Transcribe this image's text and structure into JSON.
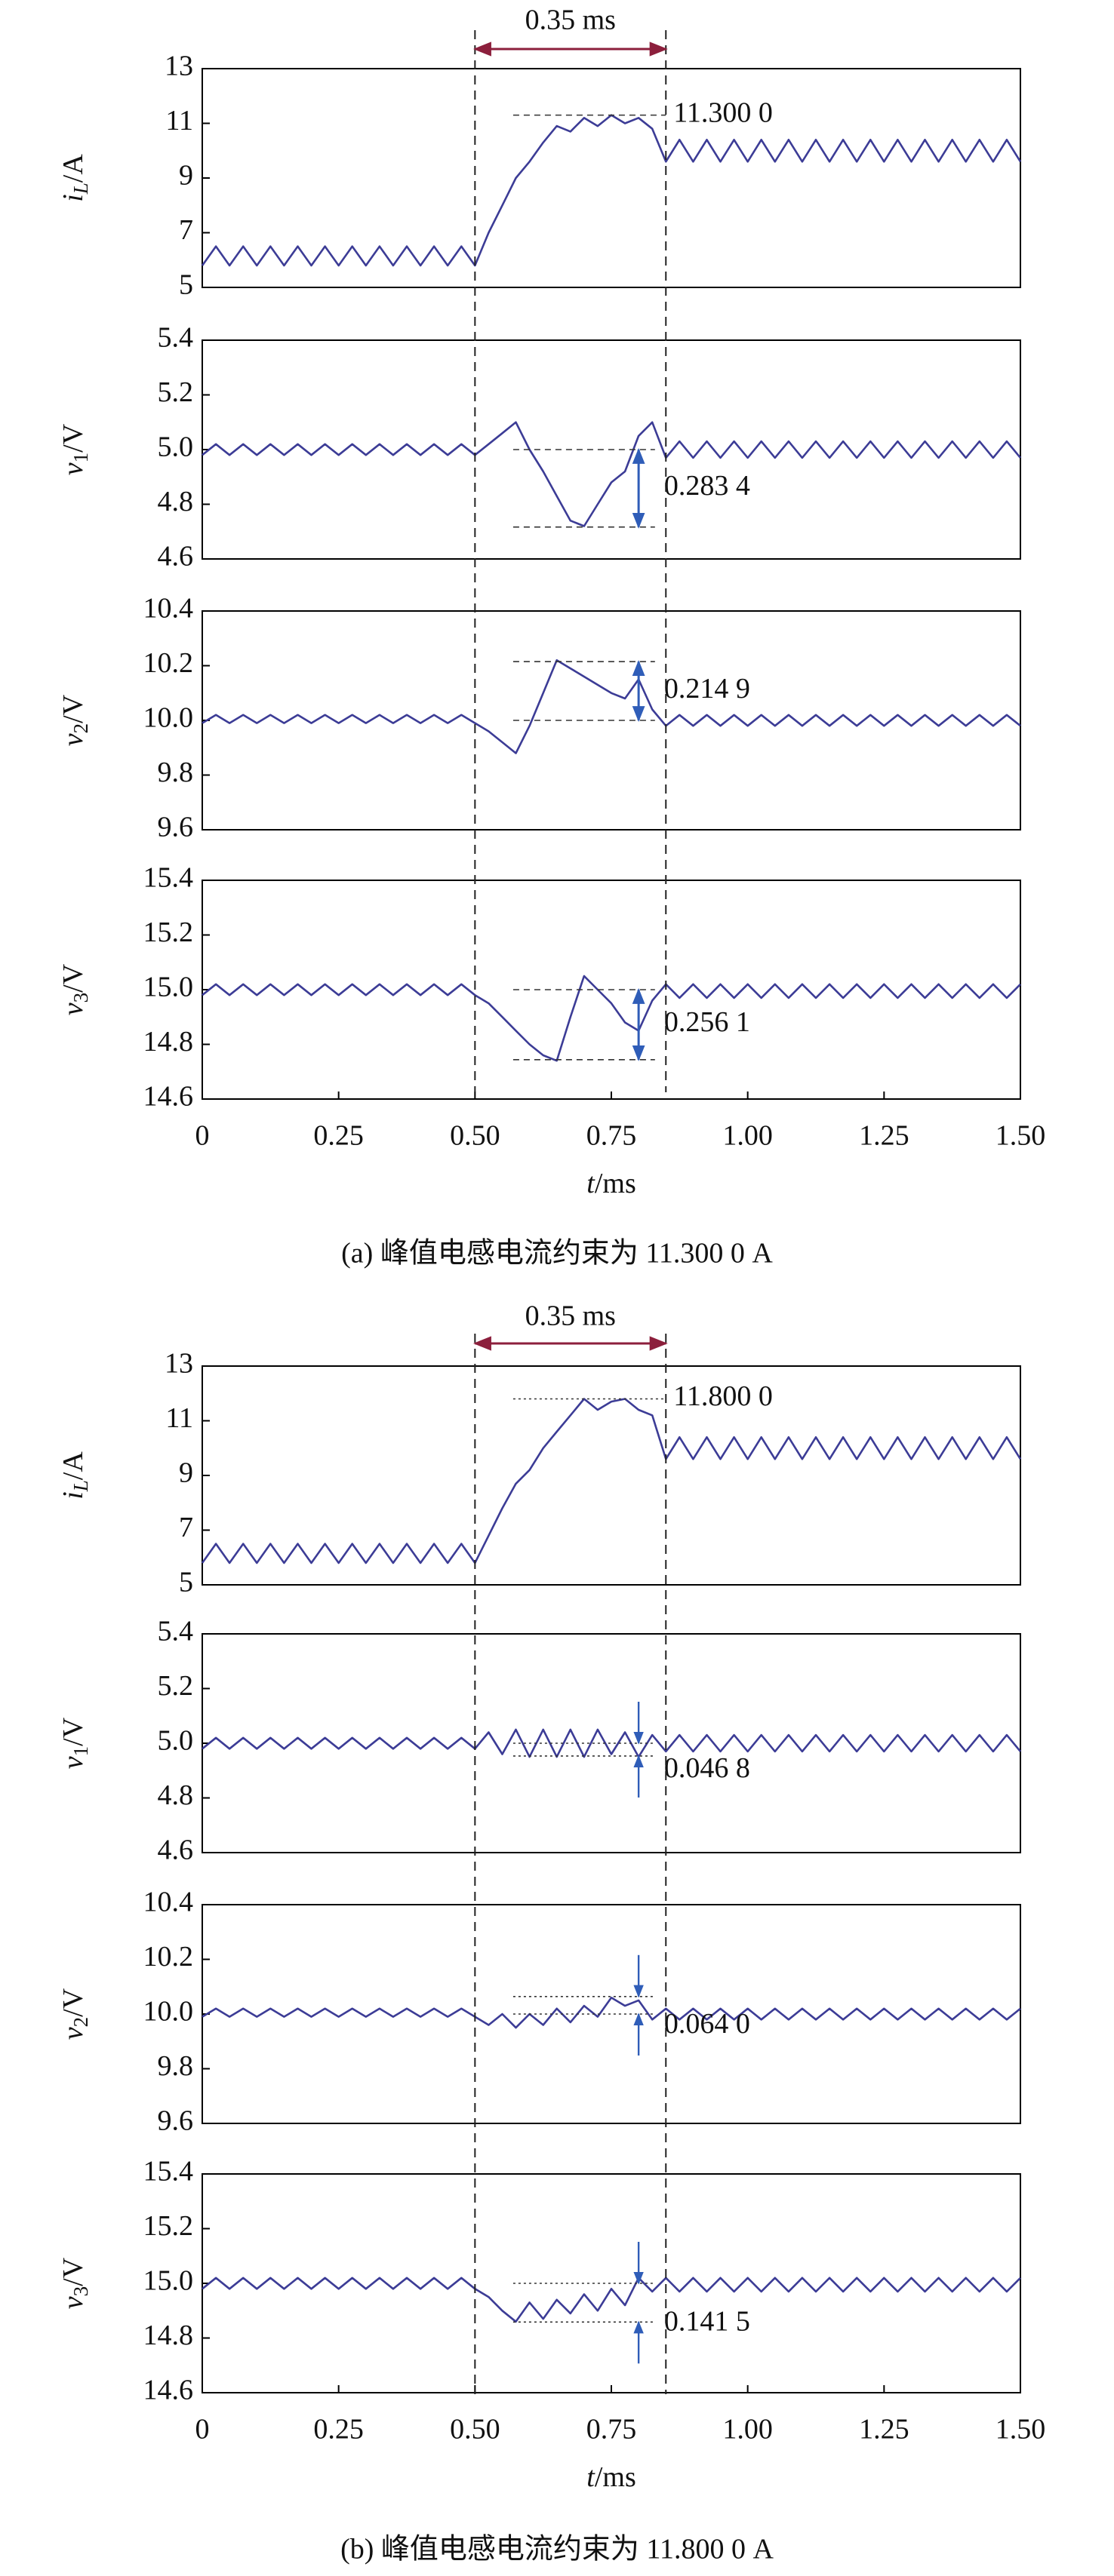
{
  "figures": [
    {
      "caption": "(a) 峰值电感电流约束为 11.300 0 A",
      "span_label": "0.35 ms",
      "span": [
        0.5,
        0.85
      ]
    },
    {
      "caption": "(b) 峰值电感电流约束为 11.800 0 A",
      "span_label": "0.35 ms",
      "span": [
        0.5,
        0.85
      ]
    }
  ],
  "chart_data": [
    {
      "type": "line",
      "ylabel": [
        "i",
        "L",
        "/A"
      ],
      "color": "#3c3c96",
      "xlim": [
        0,
        1.5
      ],
      "ylim": [
        5,
        13
      ],
      "yticks": [
        5,
        7,
        9,
        11,
        13
      ],
      "x": [
        0,
        0.025,
        0.05,
        0.075,
        0.1,
        0.125,
        0.15,
        0.175,
        0.2,
        0.225,
        0.25,
        0.275,
        0.3,
        0.325,
        0.35,
        0.375,
        0.4,
        0.425,
        0.45,
        0.475,
        0.5,
        0.525,
        0.55,
        0.575,
        0.6,
        0.625,
        0.65,
        0.675,
        0.7,
        0.725,
        0.75,
        0.775,
        0.8,
        0.825,
        0.85,
        0.875,
        0.9,
        0.925,
        0.95,
        0.975,
        1,
        1.025,
        1.05,
        1.075,
        1.1,
        1.125,
        1.15,
        1.175,
        1.2,
        1.225,
        1.25,
        1.275,
        1.3,
        1.325,
        1.35,
        1.375,
        1.4,
        1.425,
        1.45,
        1.475,
        1.5
      ],
      "values": [
        5.8,
        6.5,
        5.8,
        6.5,
        5.8,
        6.5,
        5.8,
        6.5,
        5.8,
        6.5,
        5.8,
        6.5,
        5.8,
        6.5,
        5.8,
        6.5,
        5.8,
        6.5,
        5.8,
        6.5,
        5.8,
        7.0,
        8.0,
        9.0,
        9.6,
        10.3,
        10.9,
        10.7,
        11.2,
        10.9,
        11.3,
        11.0,
        11.2,
        10.8,
        9.6,
        10.4,
        9.6,
        10.4,
        9.6,
        10.4,
        9.6,
        10.4,
        9.6,
        10.4,
        9.6,
        10.4,
        9.6,
        10.4,
        9.6,
        10.4,
        9.6,
        10.4,
        9.6,
        10.4,
        9.6,
        10.4,
        9.6,
        10.4,
        9.6,
        10.4,
        9.6
      ],
      "annotation": {
        "text": "11.300 0",
        "value": 11.3
      }
    },
    {
      "type": "line",
      "ylabel": [
        "v",
        "1",
        "/V"
      ],
      "color": "#3c3c96",
      "xlim": [
        0,
        1.5
      ],
      "ylim": [
        4.6,
        5.4
      ],
      "yticks": [
        4.6,
        4.8,
        {
          "value": 5.0,
          "label": "5.0"
        },
        5.2,
        5.4
      ],
      "x": [
        0,
        0.025,
        0.05,
        0.075,
        0.1,
        0.125,
        0.15,
        0.175,
        0.2,
        0.225,
        0.25,
        0.275,
        0.3,
        0.325,
        0.35,
        0.375,
        0.4,
        0.425,
        0.45,
        0.475,
        0.5,
        0.525,
        0.55,
        0.575,
        0.6,
        0.625,
        0.65,
        0.675,
        0.7,
        0.725,
        0.75,
        0.775,
        0.8,
        0.825,
        0.85,
        0.875,
        0.9,
        0.925,
        0.95,
        0.975,
        1,
        1.025,
        1.05,
        1.075,
        1.1,
        1.125,
        1.15,
        1.175,
        1.2,
        1.225,
        1.25,
        1.275,
        1.3,
        1.325,
        1.35,
        1.375,
        1.4,
        1.425,
        1.45,
        1.475,
        1.5
      ],
      "values": [
        4.98,
        5.02,
        4.98,
        5.02,
        4.98,
        5.02,
        4.98,
        5.02,
        4.98,
        5.02,
        4.98,
        5.02,
        4.98,
        5.02,
        4.98,
        5.02,
        4.98,
        5.02,
        4.98,
        5.02,
        4.98,
        5.02,
        5.06,
        5.1,
        5.0,
        4.92,
        4.83,
        4.74,
        4.72,
        4.8,
        4.88,
        4.92,
        5.05,
        5.1,
        4.97,
        5.03,
        4.97,
        5.03,
        4.97,
        5.03,
        4.97,
        5.03,
        4.97,
        5.03,
        4.97,
        5.03,
        4.97,
        5.03,
        4.97,
        5.03,
        4.97,
        5.03,
        4.97,
        5.03,
        4.97,
        5.03,
        4.97,
        5.03,
        4.97,
        5.03,
        4.97
      ],
      "annotation": {
        "text": "0.283 4",
        "from": 5.0,
        "to": 4.7166
      }
    },
    {
      "type": "line",
      "ylabel": [
        "v",
        "2",
        "/V"
      ],
      "color": "#3c3c96",
      "xlim": [
        0,
        1.5
      ],
      "ylim": [
        9.6,
        10.4
      ],
      "yticks": [
        9.6,
        9.8,
        {
          "value": 10.0,
          "label": "10.0"
        },
        10.2,
        10.4
      ],
      "x": [
        0,
        0.025,
        0.05,
        0.075,
        0.1,
        0.125,
        0.15,
        0.175,
        0.2,
        0.225,
        0.25,
        0.275,
        0.3,
        0.325,
        0.35,
        0.375,
        0.4,
        0.425,
        0.45,
        0.475,
        0.5,
        0.525,
        0.55,
        0.575,
        0.6,
        0.625,
        0.65,
        0.675,
        0.7,
        0.725,
        0.75,
        0.775,
        0.8,
        0.825,
        0.85,
        0.875,
        0.9,
        0.925,
        0.95,
        0.975,
        1,
        1.025,
        1.05,
        1.075,
        1.1,
        1.125,
        1.15,
        1.175,
        1.2,
        1.225,
        1.25,
        1.275,
        1.3,
        1.325,
        1.35,
        1.375,
        1.4,
        1.425,
        1.45,
        1.475,
        1.5
      ],
      "values": [
        9.99,
        10.02,
        9.99,
        10.02,
        9.99,
        10.02,
        9.99,
        10.02,
        9.99,
        10.02,
        9.99,
        10.02,
        9.99,
        10.02,
        9.99,
        10.02,
        9.99,
        10.02,
        9.99,
        10.02,
        9.99,
        9.96,
        9.92,
        9.88,
        9.98,
        10.1,
        10.22,
        10.19,
        10.16,
        10.13,
        10.1,
        10.08,
        10.15,
        10.04,
        9.98,
        10.02,
        9.98,
        10.02,
        9.98,
        10.02,
        9.98,
        10.02,
        9.98,
        10.02,
        9.98,
        10.02,
        9.98,
        10.02,
        9.98,
        10.02,
        9.98,
        10.02,
        9.98,
        10.02,
        9.98,
        10.02,
        9.98,
        10.02,
        9.98,
        10.02,
        9.98
      ],
      "annotation": {
        "text": "0.214 9",
        "from": 10.0,
        "to": 10.2149
      }
    },
    {
      "type": "line",
      "ylabel": [
        "v",
        "3",
        "/V"
      ],
      "color": "#3c3c96",
      "xlim": [
        0,
        1.5
      ],
      "ylim": [
        14.6,
        15.4
      ],
      "yticks": [
        14.6,
        14.8,
        {
          "value": 15.0,
          "label": "15.0"
        },
        15.2,
        15.4
      ],
      "xticks": [
        0,
        0.25,
        {
          "value": 0.5,
          "label": "0.50"
        },
        0.75,
        {
          "value": 1,
          "label": "1.00"
        },
        1.25,
        {
          "value": 1.5,
          "label": "1.50"
        }
      ],
      "xlabel": [
        "t",
        "/ms"
      ],
      "x": [
        0,
        0.025,
        0.05,
        0.075,
        0.1,
        0.125,
        0.15,
        0.175,
        0.2,
        0.225,
        0.25,
        0.275,
        0.3,
        0.325,
        0.35,
        0.375,
        0.4,
        0.425,
        0.45,
        0.475,
        0.5,
        0.525,
        0.55,
        0.575,
        0.6,
        0.625,
        0.65,
        0.675,
        0.7,
        0.725,
        0.75,
        0.775,
        0.8,
        0.825,
        0.85,
        0.875,
        0.9,
        0.925,
        0.95,
        0.975,
        1,
        1.025,
        1.05,
        1.075,
        1.1,
        1.125,
        1.15,
        1.175,
        1.2,
        1.225,
        1.25,
        1.275,
        1.3,
        1.325,
        1.35,
        1.375,
        1.4,
        1.425,
        1.45,
        1.475,
        1.5
      ],
      "values": [
        14.98,
        15.02,
        14.98,
        15.02,
        14.98,
        15.02,
        14.98,
        15.02,
        14.98,
        15.02,
        14.98,
        15.02,
        14.98,
        15.02,
        14.98,
        15.02,
        14.98,
        15.02,
        14.98,
        15.02,
        14.98,
        14.95,
        14.9,
        14.85,
        14.8,
        14.76,
        14.74,
        14.9,
        15.05,
        15.0,
        14.95,
        14.88,
        14.85,
        14.96,
        15.02,
        14.97,
        15.02,
        14.97,
        15.02,
        14.97,
        15.02,
        14.97,
        15.02,
        14.97,
        15.02,
        14.97,
        15.02,
        14.97,
        15.02,
        14.97,
        15.02,
        14.97,
        15.02,
        14.97,
        15.02,
        14.97,
        15.02,
        14.97,
        15.02,
        14.97,
        15.02
      ],
      "annotation": {
        "text": "0.256 1",
        "from": 15.0,
        "to": 14.7439
      }
    },
    {
      "type": "line",
      "ylabel": [
        "i",
        "L",
        "/A"
      ],
      "color": "#3c3c96",
      "xlim": [
        0,
        1.5
      ],
      "ylim": [
        5,
        13
      ],
      "yticks": [
        5,
        7,
        9,
        11,
        13
      ],
      "x": [
        0,
        0.025,
        0.05,
        0.075,
        0.1,
        0.125,
        0.15,
        0.175,
        0.2,
        0.225,
        0.25,
        0.275,
        0.3,
        0.325,
        0.35,
        0.375,
        0.4,
        0.425,
        0.45,
        0.475,
        0.5,
        0.525,
        0.55,
        0.575,
        0.6,
        0.625,
        0.65,
        0.675,
        0.7,
        0.725,
        0.75,
        0.775,
        0.8,
        0.825,
        0.85,
        0.875,
        0.9,
        0.925,
        0.95,
        0.975,
        1,
        1.025,
        1.05,
        1.075,
        1.1,
        1.125,
        1.15,
        1.175,
        1.2,
        1.225,
        1.25,
        1.275,
        1.3,
        1.325,
        1.35,
        1.375,
        1.4,
        1.425,
        1.45,
        1.475,
        1.5
      ],
      "values": [
        5.8,
        6.5,
        5.8,
        6.5,
        5.8,
        6.5,
        5.8,
        6.5,
        5.8,
        6.5,
        5.8,
        6.5,
        5.8,
        6.5,
        5.8,
        6.5,
        5.8,
        6.5,
        5.8,
        6.5,
        5.8,
        6.8,
        7.8,
        8.7,
        9.2,
        10.0,
        10.6,
        11.2,
        11.8,
        11.4,
        11.7,
        11.8,
        11.4,
        11.2,
        9.6,
        10.4,
        9.6,
        10.4,
        9.6,
        10.4,
        9.6,
        10.4,
        9.6,
        10.4,
        9.6,
        10.4,
        9.6,
        10.4,
        9.6,
        10.4,
        9.6,
        10.4,
        9.6,
        10.4,
        9.6,
        10.4,
        9.6,
        10.4,
        9.6,
        10.4,
        9.6
      ],
      "annotation": {
        "text": "11.800 0",
        "value": 11.8
      }
    },
    {
      "type": "line",
      "ylabel": [
        "v",
        "1",
        "/V"
      ],
      "color": "#3c3c96",
      "xlim": [
        0,
        1.5
      ],
      "ylim": [
        4.6,
        5.4
      ],
      "yticks": [
        4.6,
        4.8,
        {
          "value": 5.0,
          "label": "5.0"
        },
        5.2,
        5.4
      ],
      "x": [
        0,
        0.025,
        0.05,
        0.075,
        0.1,
        0.125,
        0.15,
        0.175,
        0.2,
        0.225,
        0.25,
        0.275,
        0.3,
        0.325,
        0.35,
        0.375,
        0.4,
        0.425,
        0.45,
        0.475,
        0.5,
        0.525,
        0.55,
        0.575,
        0.6,
        0.625,
        0.65,
        0.675,
        0.7,
        0.725,
        0.75,
        0.775,
        0.8,
        0.825,
        0.85,
        0.875,
        0.9,
        0.925,
        0.95,
        0.975,
        1,
        1.025,
        1.05,
        1.075,
        1.1,
        1.125,
        1.15,
        1.175,
        1.2,
        1.225,
        1.25,
        1.275,
        1.3,
        1.325,
        1.35,
        1.375,
        1.4,
        1.425,
        1.45,
        1.475,
        1.5
      ],
      "values": [
        4.98,
        5.02,
        4.98,
        5.02,
        4.98,
        5.02,
        4.98,
        5.02,
        4.98,
        5.02,
        4.98,
        5.02,
        4.98,
        5.02,
        4.98,
        5.02,
        4.98,
        5.02,
        4.98,
        5.02,
        4.98,
        5.04,
        4.96,
        5.05,
        4.95,
        5.05,
        4.95,
        5.05,
        4.95,
        5.05,
        4.96,
        5.04,
        4.95,
        5.03,
        4.97,
        5.03,
        4.97,
        5.03,
        4.97,
        5.03,
        4.97,
        5.03,
        4.97,
        5.03,
        4.97,
        5.03,
        4.97,
        5.03,
        4.97,
        5.03,
        4.97,
        5.03,
        4.97,
        5.03,
        4.97,
        5.03,
        4.97,
        5.03,
        4.97,
        5.03,
        4.97
      ],
      "annotation": {
        "text": "0.046 8",
        "from": 5.0,
        "to": 4.9532
      }
    },
    {
      "type": "line",
      "ylabel": [
        "v",
        "2",
        "/V"
      ],
      "color": "#3c3c96",
      "xlim": [
        0,
        1.5
      ],
      "ylim": [
        9.6,
        10.4
      ],
      "yticks": [
        9.6,
        9.8,
        {
          "value": 10.0,
          "label": "10.0"
        },
        10.2,
        10.4
      ],
      "x": [
        0,
        0.025,
        0.05,
        0.075,
        0.1,
        0.125,
        0.15,
        0.175,
        0.2,
        0.225,
        0.25,
        0.275,
        0.3,
        0.325,
        0.35,
        0.375,
        0.4,
        0.425,
        0.45,
        0.475,
        0.5,
        0.525,
        0.55,
        0.575,
        0.6,
        0.625,
        0.65,
        0.675,
        0.7,
        0.725,
        0.75,
        0.775,
        0.8,
        0.825,
        0.85,
        0.875,
        0.9,
        0.925,
        0.95,
        0.975,
        1,
        1.025,
        1.05,
        1.075,
        1.1,
        1.125,
        1.15,
        1.175,
        1.2,
        1.225,
        1.25,
        1.275,
        1.3,
        1.325,
        1.35,
        1.375,
        1.4,
        1.425,
        1.45,
        1.475,
        1.5
      ],
      "values": [
        9.99,
        10.02,
        9.99,
        10.02,
        9.99,
        10.02,
        9.99,
        10.02,
        9.99,
        10.02,
        9.99,
        10.02,
        9.99,
        10.02,
        9.99,
        10.02,
        9.99,
        10.02,
        9.99,
        10.02,
        9.99,
        9.96,
        10.0,
        9.95,
        10.0,
        9.96,
        10.02,
        9.97,
        10.03,
        9.99,
        10.06,
        10.03,
        10.05,
        9.98,
        10.02,
        9.98,
        10.02,
        9.98,
        10.02,
        9.98,
        10.02,
        9.98,
        10.02,
        9.98,
        10.02,
        9.98,
        10.02,
        9.98,
        10.02,
        9.98,
        10.02,
        9.98,
        10.02,
        9.98,
        10.02,
        9.98,
        10.02,
        9.98,
        10.02,
        9.98,
        10.02
      ],
      "annotation": {
        "text": "0.064 0",
        "from": 10.0,
        "to": 10.064
      }
    },
    {
      "type": "line",
      "ylabel": [
        "v",
        "3",
        "/V"
      ],
      "color": "#3c3c96",
      "xlim": [
        0,
        1.5
      ],
      "ylim": [
        14.6,
        15.4
      ],
      "yticks": [
        14.6,
        14.8,
        {
          "value": 15.0,
          "label": "15.0"
        },
        15.2,
        15.4
      ],
      "xticks": [
        0,
        0.25,
        {
          "value": 0.5,
          "label": "0.50"
        },
        0.75,
        {
          "value": 1,
          "label": "1.00"
        },
        1.25,
        {
          "value": 1.5,
          "label": "1.50"
        }
      ],
      "xlabel": [
        "t",
        "/ms"
      ],
      "x": [
        0,
        0.025,
        0.05,
        0.075,
        0.1,
        0.125,
        0.15,
        0.175,
        0.2,
        0.225,
        0.25,
        0.275,
        0.3,
        0.325,
        0.35,
        0.375,
        0.4,
        0.425,
        0.45,
        0.475,
        0.5,
        0.525,
        0.55,
        0.575,
        0.6,
        0.625,
        0.65,
        0.675,
        0.7,
        0.725,
        0.75,
        0.775,
        0.8,
        0.825,
        0.85,
        0.875,
        0.9,
        0.925,
        0.95,
        0.975,
        1,
        1.025,
        1.05,
        1.075,
        1.1,
        1.125,
        1.15,
        1.175,
        1.2,
        1.225,
        1.25,
        1.275,
        1.3,
        1.325,
        1.35,
        1.375,
        1.4,
        1.425,
        1.45,
        1.475,
        1.5
      ],
      "values": [
        14.98,
        15.02,
        14.98,
        15.02,
        14.98,
        15.02,
        14.98,
        15.02,
        14.98,
        15.02,
        14.98,
        15.02,
        14.98,
        15.02,
        14.98,
        15.02,
        14.98,
        15.02,
        14.98,
        15.02,
        14.98,
        14.95,
        14.9,
        14.86,
        14.93,
        14.87,
        14.94,
        14.89,
        14.96,
        14.9,
        14.98,
        14.92,
        15.02,
        14.97,
        15.02,
        14.97,
        15.02,
        14.97,
        15.02,
        14.97,
        15.02,
        14.97,
        15.02,
        14.97,
        15.02,
        14.97,
        15.02,
        14.97,
        15.02,
        14.97,
        15.02,
        14.97,
        15.02,
        14.97,
        15.02,
        14.97,
        15.02,
        14.97,
        15.02,
        14.97,
        15.02
      ],
      "annotation": {
        "text": "0.141 5",
        "from": 15.0,
        "to": 14.8585
      }
    }
  ]
}
